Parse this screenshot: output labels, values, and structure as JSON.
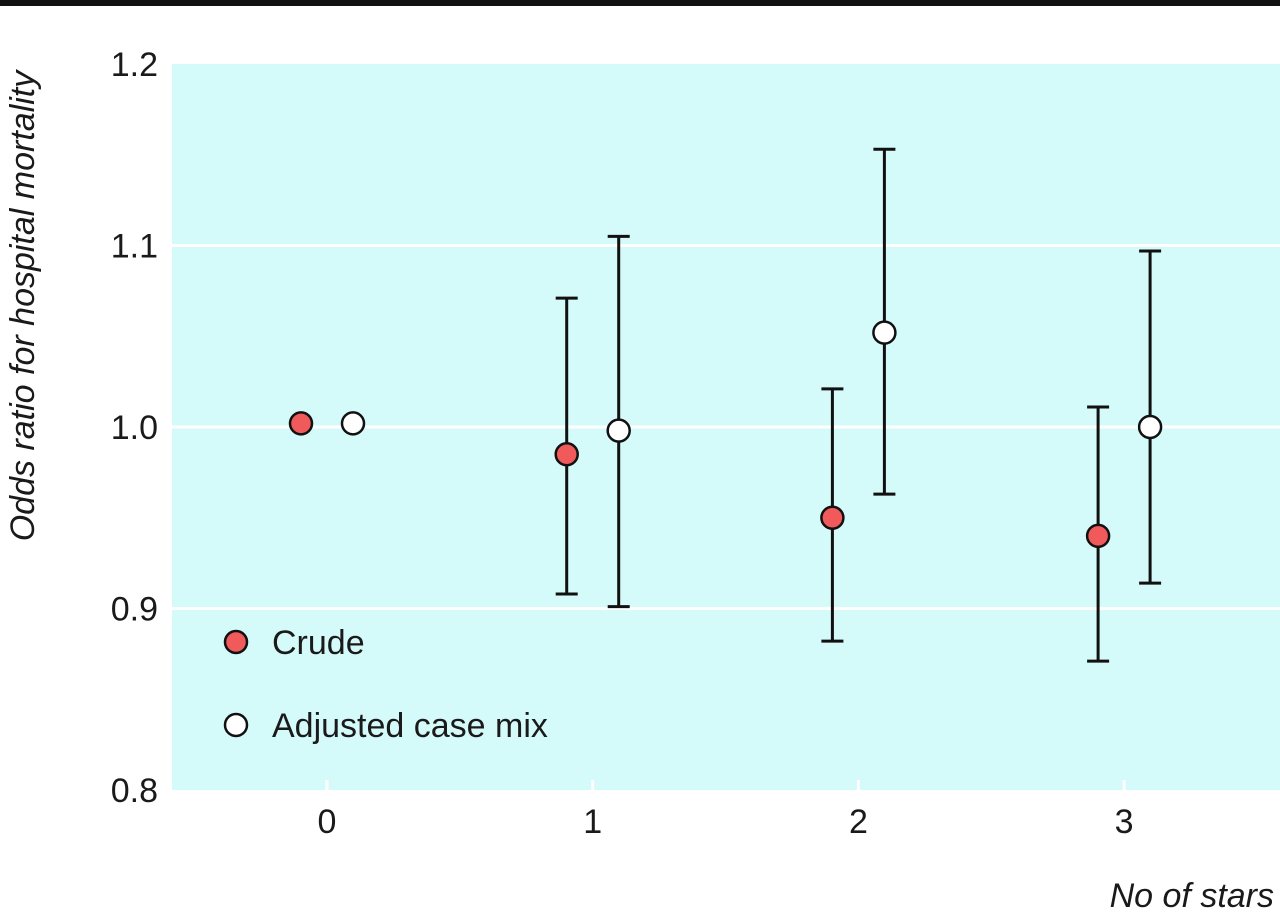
{
  "chart_data": {
    "type": "scatter",
    "title": "",
    "xlabel": "No of stars",
    "ylabel": "Odds ratio for hospital mortality",
    "categories": [
      "0",
      "1",
      "2",
      "3"
    ],
    "ylim": [
      0.8,
      1.2
    ],
    "yticks": [
      "0.8",
      "0.9",
      "1.0",
      "1.1",
      "1.2"
    ],
    "grid": true,
    "legend_position": "bottom-left",
    "background_color": "#d5fafa",
    "series": [
      {
        "name": "Crude",
        "color": "#f05a5a",
        "values": [
          1.002,
          0.985,
          0.95,
          0.94
        ],
        "ci_low": [
          null,
          0.908,
          0.882,
          0.871
        ],
        "ci_high": [
          null,
          1.071,
          1.021,
          1.011
        ]
      },
      {
        "name": "Adjusted case mix",
        "color": "#ffffff",
        "values": [
          1.002,
          0.998,
          1.052,
          1.0
        ],
        "ci_low": [
          null,
          0.901,
          0.963,
          0.914
        ],
        "ci_high": [
          null,
          1.105,
          1.153,
          1.097
        ]
      }
    ]
  }
}
